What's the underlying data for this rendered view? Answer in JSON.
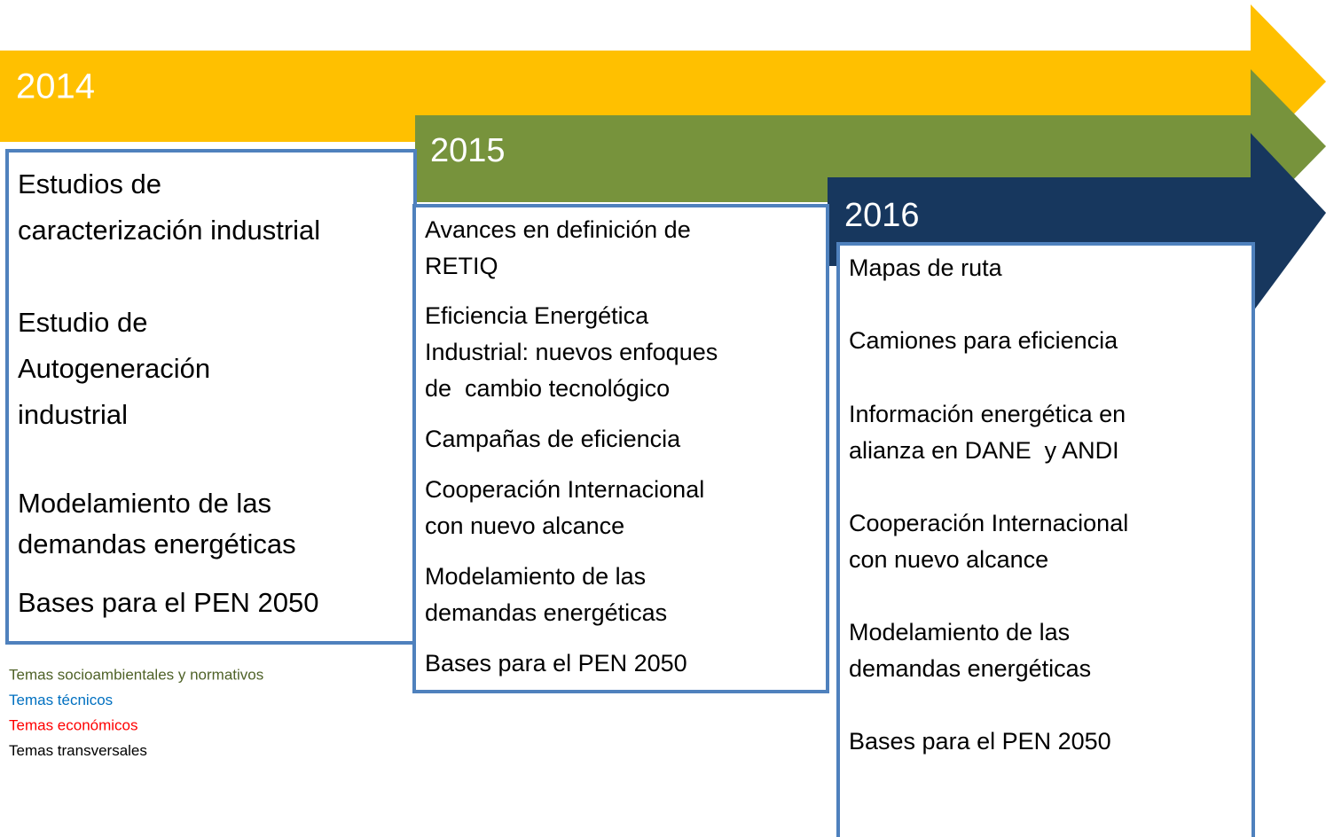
{
  "columns": [
    {
      "year": "2014",
      "items": [
        [
          "Estudios de",
          "caracterización industrial"
        ],
        [
          "Estudio de",
          "Autogeneración",
          "industrial"
        ],
        [
          "Modelamiento de las",
          "demandas energéticas"
        ],
        [
          "Bases para el PEN 2050"
        ]
      ]
    },
    {
      "year": "2015",
      "items": [
        [
          "Avances en definición de",
          "RETIQ"
        ],
        [
          "Eficiencia Energética",
          "Industrial: nuevos enfoques",
          "de  cambio tecnológico"
        ],
        [
          "Campañas de eficiencia"
        ],
        [
          "Cooperación Internacional",
          "con nuevo alcance"
        ],
        [
          "Modelamiento de las",
          "demandas energéticas"
        ],
        [
          "Bases para el PEN 2050"
        ]
      ]
    },
    {
      "year": "2016",
      "items": [
        [
          "Mapas de ruta"
        ],
        [
          "Camiones para eficiencia"
        ],
        [
          "Información energética en",
          "alianza en DANE  y ANDI"
        ],
        [
          "Cooperación Internacional",
          "con nuevo alcance"
        ],
        [
          "Modelamiento de las",
          "demandas energéticas"
        ],
        [
          "Bases para el PEN 2050"
        ]
      ]
    }
  ],
  "legend": [
    {
      "label": "Temas socioambientales y normativos",
      "color": "#4f6228"
    },
    {
      "label": "Temas técnicos",
      "color": "#0070c0"
    },
    {
      "label": "Temas económicos",
      "color": "#ff0000"
    },
    {
      "label": "Temas transversales",
      "color": "#000000"
    }
  ]
}
